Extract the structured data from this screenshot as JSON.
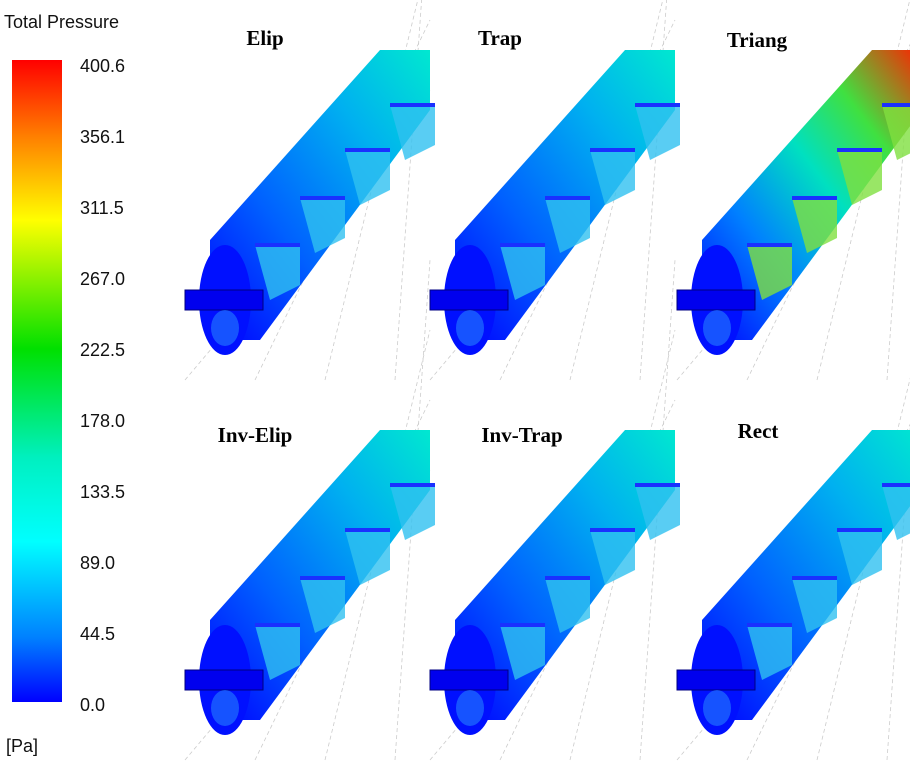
{
  "legend": {
    "title": "Total Pressure",
    "ticks": [
      "400.6",
      "356.1",
      "311.5",
      "267.0",
      "222.5",
      "178.0",
      "133.5",
      "89.0",
      "44.5",
      "0.0"
    ],
    "unit": "[Pa]"
  },
  "panels": [
    {
      "label": "Elip"
    },
    {
      "label": "Trap"
    },
    {
      "label": "Triang"
    },
    {
      "label": "Inv-Elip"
    },
    {
      "label": "Inv-Trap"
    },
    {
      "label": "Rect"
    }
  ]
}
